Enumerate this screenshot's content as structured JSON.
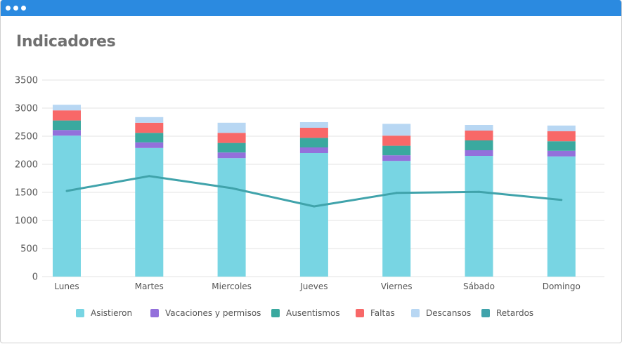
{
  "window": {
    "title_bar_color": "#2b8ae0"
  },
  "title": "Indicadores",
  "chart_data": {
    "type": "bar",
    "stacked": true,
    "categories": [
      "Lunes",
      "Martes",
      "Miercoles",
      "Jueves",
      "Viernes",
      "Sábado",
      "Domingo"
    ],
    "series": [
      {
        "name": "Asistieron",
        "type": "bar",
        "color": "#78d5e3",
        "values": [
          2510,
          2290,
          2110,
          2200,
          2060,
          2150,
          2140
        ]
      },
      {
        "name": "Vacaciones y permisos",
        "type": "bar",
        "color": "#9370db",
        "values": [
          100,
          100,
          100,
          100,
          100,
          100,
          100
        ]
      },
      {
        "name": "Ausentismos",
        "type": "bar",
        "color": "#3aa99f",
        "values": [
          170,
          170,
          170,
          170,
          170,
          175,
          170
        ]
      },
      {
        "name": "Faltas",
        "type": "bar",
        "color": "#f86868",
        "values": [
          180,
          180,
          180,
          180,
          180,
          175,
          180
        ]
      },
      {
        "name": "Descansos",
        "type": "bar",
        "color": "#b8d7f3",
        "values": [
          100,
          100,
          180,
          100,
          210,
          100,
          100
        ]
      },
      {
        "name": "Retardos",
        "type": "line",
        "color": "#40a3ab",
        "values": [
          1525,
          1790,
          1575,
          1250,
          1490,
          1510,
          1365
        ]
      }
    ],
    "yticks": [
      "0",
      "500",
      "1000",
      "1500",
      "2000",
      "2500",
      "3000",
      "3500"
    ],
    "ylim": [
      0,
      3500
    ],
    "grid": true,
    "legend": "bottom"
  }
}
